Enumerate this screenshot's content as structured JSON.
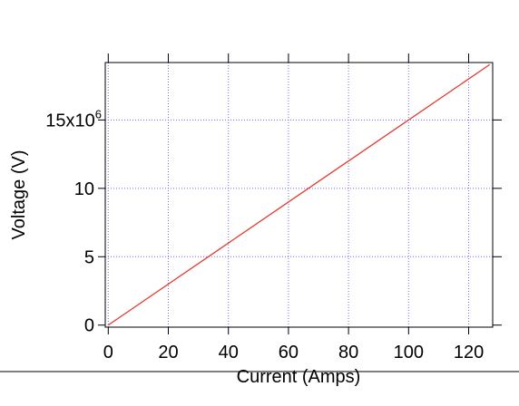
{
  "chart_data": {
    "type": "line",
    "title": "",
    "xlabel": "Current (Amps)",
    "ylabel": "Voltage (V)",
    "x_ticks": [
      0,
      20,
      40,
      60,
      80,
      100,
      120
    ],
    "x_tick_labels": [
      "0",
      "20",
      "40",
      "60",
      "80",
      "100",
      "120"
    ],
    "y_ticks": [
      0,
      5000000,
      10000000,
      15000000
    ],
    "y_tick_labels": [
      "0",
      "5",
      "10",
      "15x10"
    ],
    "y_tick_exponent": "6",
    "xlim": [
      -1,
      128
    ],
    "ylim": [
      -150000,
      19200000
    ],
    "grid": true,
    "grid_color": "#6f6fe6",
    "series": [
      {
        "color": "#e23b2e",
        "x": [
          0,
          127
        ],
        "y": [
          0,
          19050000
        ]
      }
    ]
  }
}
